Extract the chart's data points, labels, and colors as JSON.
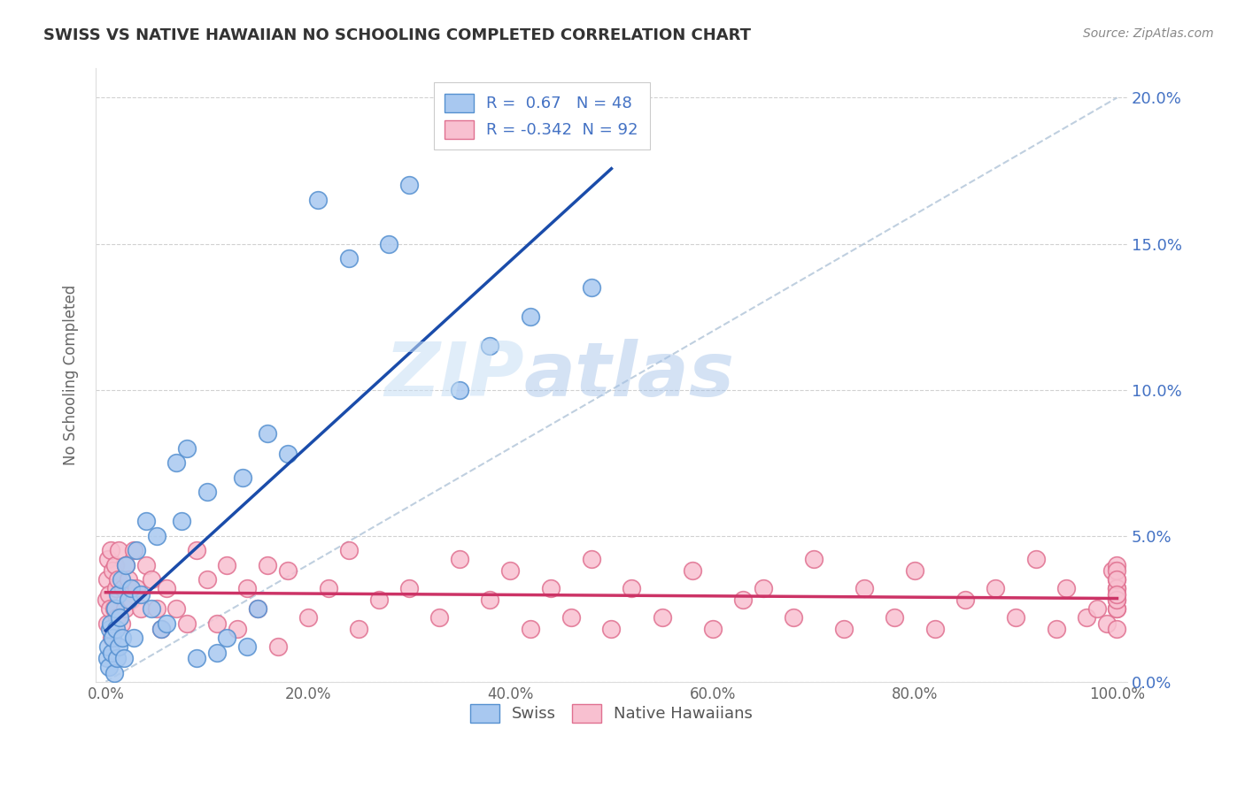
{
  "title": "SWISS VS NATIVE HAWAIIAN NO SCHOOLING COMPLETED CORRELATION CHART",
  "source": "Source: ZipAtlas.com",
  "ylabel": "No Schooling Completed",
  "swiss_R": 0.67,
  "swiss_N": 48,
  "hawaiian_R": -0.342,
  "hawaiian_N": 92,
  "swiss_color": "#a8c8f0",
  "swiss_edge_color": "#5590d0",
  "hawaiian_color": "#f8c0d0",
  "hawaiian_edge_color": "#e07090",
  "swiss_line_color": "#1a4caa",
  "hawaiian_line_color": "#cc3366",
  "title_color": "#333333",
  "legend_text_color": "#4472c4",
  "right_axis_color": "#4472c4",
  "background_color": "#ffffff",
  "watermark_zip": "ZIP",
  "watermark_atlas": "atlas",
  "xlim": [
    0,
    100
  ],
  "ylim": [
    0,
    21
  ],
  "xticks": [
    0,
    20,
    40,
    60,
    80,
    100
  ],
  "yticks": [
    0,
    5,
    10,
    15,
    20
  ],
  "swiss_x": [
    0.1,
    0.2,
    0.3,
    0.4,
    0.5,
    0.6,
    0.7,
    0.8,
    0.9,
    1.0,
    1.1,
    1.2,
    1.3,
    1.4,
    1.5,
    1.6,
    1.8,
    2.0,
    2.2,
    2.5,
    2.8,
    3.0,
    3.5,
    4.0,
    4.5,
    5.0,
    5.5,
    6.0,
    7.0,
    7.5,
    8.0,
    9.0,
    10.0,
    11.0,
    12.0,
    13.5,
    14.0,
    15.0,
    16.0,
    18.0,
    21.0,
    24.0,
    28.0,
    30.0,
    35.0,
    38.0,
    42.0,
    48.0
  ],
  "swiss_y": [
    0.8,
    1.2,
    0.5,
    1.8,
    2.0,
    1.0,
    1.5,
    0.3,
    2.5,
    1.8,
    0.8,
    3.0,
    1.2,
    2.2,
    3.5,
    1.5,
    0.8,
    4.0,
    2.8,
    3.2,
    1.5,
    4.5,
    3.0,
    5.5,
    2.5,
    5.0,
    1.8,
    2.0,
    7.5,
    5.5,
    8.0,
    0.8,
    6.5,
    1.0,
    1.5,
    7.0,
    1.2,
    2.5,
    8.5,
    7.8,
    16.5,
    14.5,
    15.0,
    17.0,
    10.0,
    11.5,
    12.5,
    13.5
  ],
  "hawaiian_x": [
    0.05,
    0.1,
    0.15,
    0.2,
    0.3,
    0.4,
    0.5,
    0.6,
    0.7,
    0.8,
    0.9,
    1.0,
    1.1,
    1.2,
    1.3,
    1.5,
    1.7,
    1.9,
    2.0,
    2.2,
    2.5,
    2.8,
    3.0,
    3.5,
    4.0,
    4.5,
    5.0,
    5.5,
    6.0,
    7.0,
    8.0,
    9.0,
    10.0,
    11.0,
    12.0,
    13.0,
    14.0,
    15.0,
    16.0,
    17.0,
    18.0,
    20.0,
    22.0,
    24.0,
    25.0,
    27.0,
    30.0,
    33.0,
    35.0,
    38.0,
    40.0,
    42.0,
    44.0,
    46.0,
    48.0,
    50.0,
    52.0,
    55.0,
    58.0,
    60.0,
    63.0,
    65.0,
    68.0,
    70.0,
    73.0,
    75.0,
    78.0,
    80.0,
    82.0,
    85.0,
    88.0,
    90.0,
    92.0,
    94.0,
    95.0,
    97.0,
    98.0,
    99.0,
    99.5,
    100.0,
    100.0,
    100.0,
    100.0,
    100.0,
    100.0,
    100.0,
    100.0,
    100.0,
    100.0,
    100.0,
    100.0,
    100.0
  ],
  "hawaiian_y": [
    2.8,
    3.5,
    2.0,
    4.2,
    3.0,
    2.5,
    4.5,
    1.5,
    3.8,
    2.5,
    4.0,
    3.2,
    2.2,
    3.5,
    4.5,
    2.0,
    3.2,
    2.5,
    4.0,
    3.5,
    2.8,
    4.5,
    3.2,
    2.5,
    4.0,
    3.5,
    2.5,
    1.8,
    3.2,
    2.5,
    2.0,
    4.5,
    3.5,
    2.0,
    4.0,
    1.8,
    3.2,
    2.5,
    4.0,
    1.2,
    3.8,
    2.2,
    3.2,
    4.5,
    1.8,
    2.8,
    3.2,
    2.2,
    4.2,
    2.8,
    3.8,
    1.8,
    3.2,
    2.2,
    4.2,
    1.8,
    3.2,
    2.2,
    3.8,
    1.8,
    2.8,
    3.2,
    2.2,
    4.2,
    1.8,
    3.2,
    2.2,
    3.8,
    1.8,
    2.8,
    3.2,
    2.2,
    4.2,
    1.8,
    3.2,
    2.2,
    2.5,
    2.0,
    3.8,
    3.0,
    3.5,
    2.8,
    4.0,
    2.5,
    3.2,
    1.8,
    3.8,
    2.5,
    3.2,
    2.8,
    3.5,
    3.0
  ]
}
